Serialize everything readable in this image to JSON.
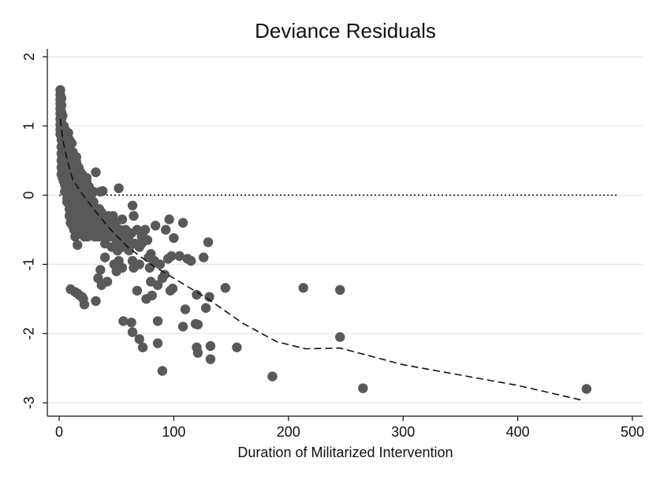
{
  "chart_data": {
    "type": "scatter",
    "title": "Deviance Residuals",
    "xlabel": "Duration of Militarized Intervention",
    "ylabel": "",
    "xlim": [
      0,
      500
    ],
    "ylim": [
      -3,
      2
    ],
    "xticks": [
      "0",
      "100",
      "200",
      "300",
      "400",
      "500"
    ],
    "xtick_values": [
      0,
      100,
      200,
      300,
      400,
      500
    ],
    "yticks": [
      "2",
      "1",
      "0",
      "-1",
      "-2",
      "-3"
    ],
    "ytick_values": [
      2,
      1,
      0,
      -1,
      -2,
      -3
    ],
    "grid": true,
    "legend": "none",
    "colors": {
      "points": "#595959",
      "fit_line": "#111111",
      "reference_line": "#111111",
      "grid": "#e6e6e6"
    },
    "points": [
      [
        1,
        1.52
      ],
      [
        1,
        1.45
      ],
      [
        1,
        1.38
      ],
      [
        1,
        1.32
      ],
      [
        1,
        1.25
      ],
      [
        1,
        1.18
      ],
      [
        1,
        1.1
      ],
      [
        1,
        1.02
      ],
      [
        1,
        0.95
      ],
      [
        1,
        0.88
      ],
      [
        2,
        1.4
      ],
      [
        2,
        1.3
      ],
      [
        2,
        1.2
      ],
      [
        2,
        1.1
      ],
      [
        2,
        1.0
      ],
      [
        2,
        0.9
      ],
      [
        2,
        0.8
      ],
      [
        2,
        0.7
      ],
      [
        2,
        0.6
      ],
      [
        2,
        0.5
      ],
      [
        2,
        0.4
      ],
      [
        2,
        0.3
      ],
      [
        3,
        1.15
      ],
      [
        3,
        0.95
      ],
      [
        3,
        0.8
      ],
      [
        3,
        0.65
      ],
      [
        3,
        0.55
      ],
      [
        3,
        0.45
      ],
      [
        3,
        0.35
      ],
      [
        3,
        0.25
      ],
      [
        4,
        1.0
      ],
      [
        4,
        0.85
      ],
      [
        4,
        0.7
      ],
      [
        4,
        0.6
      ],
      [
        4,
        0.5
      ],
      [
        4,
        0.4
      ],
      [
        4,
        0.3
      ],
      [
        4,
        0.2
      ],
      [
        5,
        0.9
      ],
      [
        5,
        0.75
      ],
      [
        5,
        0.6
      ],
      [
        5,
        0.45
      ],
      [
        5,
        0.3
      ],
      [
        5,
        0.15
      ],
      [
        5,
        0.05
      ],
      [
        6,
        0.85
      ],
      [
        6,
        0.65
      ],
      [
        6,
        0.5
      ],
      [
        6,
        0.35
      ],
      [
        6,
        0.2
      ],
      [
        6,
        0.05
      ],
      [
        7,
        0.75
      ],
      [
        7,
        0.55
      ],
      [
        7,
        0.4
      ],
      [
        7,
        0.2
      ],
      [
        7,
        -0.05
      ],
      [
        7,
        -0.1
      ],
      [
        8,
        0.9
      ],
      [
        8,
        0.7
      ],
      [
        8,
        0.5
      ],
      [
        8,
        0.3
      ],
      [
        8,
        0.15
      ],
      [
        8,
        -0.1
      ],
      [
        9,
        0.8
      ],
      [
        9,
        0.6
      ],
      [
        9,
        0.45
      ],
      [
        9,
        0.25
      ],
      [
        9,
        0.1
      ],
      [
        9,
        -0.2
      ],
      [
        9,
        -0.3
      ],
      [
        10,
        0.65
      ],
      [
        10,
        0.5
      ],
      [
        10,
        0.35
      ],
      [
        10,
        0.2
      ],
      [
        10,
        0.05
      ],
      [
        10,
        -0.1
      ],
      [
        10,
        -0.25
      ],
      [
        10,
        -0.4
      ],
      [
        11,
        0.55
      ],
      [
        11,
        0.4
      ],
      [
        11,
        0.25
      ],
      [
        11,
        0.1
      ],
      [
        11,
        -0.05
      ],
      [
        11,
        -0.35
      ],
      [
        12,
        0.45
      ],
      [
        12,
        0.3
      ],
      [
        12,
        0.15
      ],
      [
        12,
        0.0
      ],
      [
        12,
        -0.15
      ],
      [
        12,
        -0.3
      ],
      [
        12,
        -0.45
      ],
      [
        13,
        0.4
      ],
      [
        13,
        0.2
      ],
      [
        13,
        0.05
      ],
      [
        13,
        -0.2
      ],
      [
        13,
        -0.4
      ],
      [
        13,
        -0.5
      ],
      [
        14,
        0.3
      ],
      [
        14,
        0.15
      ],
      [
        14,
        -0.05
      ],
      [
        14,
        -0.25
      ],
      [
        14,
        -0.45
      ],
      [
        14,
        -0.6
      ],
      [
        15,
        0.55
      ],
      [
        15,
        0.35
      ],
      [
        15,
        0.1
      ],
      [
        15,
        -0.1
      ],
      [
        15,
        -0.3
      ],
      [
        15,
        -0.55
      ],
      [
        16,
        0.25
      ],
      [
        16,
        0.05
      ],
      [
        16,
        -0.15
      ],
      [
        16,
        -0.35
      ],
      [
        16,
        -0.72
      ],
      [
        17,
        0.4
      ],
      [
        17,
        0.2
      ],
      [
        17,
        0.0
      ],
      [
        17,
        -0.2
      ],
      [
        17,
        -0.4
      ],
      [
        18,
        0.3
      ],
      [
        18,
        0.1
      ],
      [
        18,
        -0.1
      ],
      [
        18,
        -0.3
      ],
      [
        18,
        -0.5
      ],
      [
        19,
        0.15
      ],
      [
        19,
        -0.05
      ],
      [
        19,
        -0.25
      ],
      [
        19,
        -0.45
      ],
      [
        20,
        0.25
      ],
      [
        20,
        0.05
      ],
      [
        20,
        -0.15
      ],
      [
        20,
        -0.35
      ],
      [
        20,
        -0.55
      ],
      [
        21,
        0.2
      ],
      [
        21,
        -0.05
      ],
      [
        21,
        -0.3
      ],
      [
        21,
        -0.5
      ],
      [
        22,
        0.1
      ],
      [
        22,
        -0.1
      ],
      [
        22,
        -0.35
      ],
      [
        22,
        -0.6
      ],
      [
        23,
        0.15
      ],
      [
        23,
        -0.05
      ],
      [
        23,
        -0.2
      ],
      [
        23,
        -0.45
      ],
      [
        24,
        0.25
      ],
      [
        24,
        0.0
      ],
      [
        24,
        -0.3
      ],
      [
        24,
        -0.55
      ],
      [
        25,
        0.1
      ],
      [
        25,
        -0.15
      ],
      [
        25,
        -0.4
      ],
      [
        25,
        -0.6
      ],
      [
        26,
        0.05
      ],
      [
        26,
        -0.2
      ],
      [
        26,
        -0.35
      ],
      [
        27,
        -0.1
      ],
      [
        27,
        -0.25
      ],
      [
        27,
        -0.5
      ],
      [
        28,
        0.0
      ],
      [
        28,
        -0.3
      ],
      [
        28,
        -0.45
      ],
      [
        29,
        -0.15
      ],
      [
        29,
        -0.35
      ],
      [
        29,
        -0.55
      ],
      [
        30,
        0.05
      ],
      [
        30,
        -0.1
      ],
      [
        30,
        -0.4
      ],
      [
        31,
        -0.2
      ],
      [
        31,
        -0.6
      ],
      [
        32,
        0.33
      ],
      [
        32,
        -0.3
      ],
      [
        32,
        -0.5
      ],
      [
        33,
        -0.45
      ],
      [
        34,
        -0.35
      ],
      [
        34,
        -0.6
      ],
      [
        35,
        -0.2
      ],
      [
        35,
        -0.55
      ],
      [
        36,
        0.05
      ],
      [
        36,
        -0.4
      ],
      [
        37,
        -0.25
      ],
      [
        38,
        -0.6
      ],
      [
        38,
        0.06
      ],
      [
        39,
        -0.45
      ],
      [
        40,
        -0.3
      ],
      [
        40,
        -0.7
      ],
      [
        41,
        -0.5
      ],
      [
        42,
        -0.4
      ],
      [
        43,
        -0.3
      ],
      [
        44,
        -0.6
      ],
      [
        45,
        -0.5
      ],
      [
        46,
        -0.75
      ],
      [
        47,
        -0.3
      ],
      [
        48,
        -0.55
      ],
      [
        49,
        -0.4
      ],
      [
        50,
        -0.65
      ],
      [
        51,
        -0.8
      ],
      [
        52,
        0.1
      ],
      [
        53,
        -0.5
      ],
      [
        54,
        -0.7
      ],
      [
        55,
        -0.35
      ],
      [
        56,
        -0.6
      ],
      [
        57,
        -0.75
      ],
      [
        58,
        -0.5
      ],
      [
        60,
        -0.65
      ],
      [
        61,
        -0.8
      ],
      [
        63,
        -0.55
      ],
      [
        64,
        -0.15
      ],
      [
        65,
        -0.3
      ],
      [
        66,
        -0.7
      ],
      [
        68,
        -0.5
      ],
      [
        70,
        -0.75
      ],
      [
        72,
        -0.6
      ],
      [
        75,
        -0.5
      ],
      [
        77,
        -0.65
      ],
      [
        80,
        -0.85
      ],
      [
        10,
        -1.36
      ],
      [
        14,
        -1.4
      ],
      [
        16,
        -1.42
      ],
      [
        18,
        -1.45
      ],
      [
        20,
        -1.47
      ],
      [
        21,
        -1.5
      ],
      [
        22,
        -1.58
      ],
      [
        32,
        -1.53
      ],
      [
        34,
        -1.2
      ],
      [
        36,
        -1.08
      ],
      [
        37,
        -1.3
      ],
      [
        40,
        -0.9
      ],
      [
        42,
        -1.25
      ],
      [
        48,
        -1.0
      ],
      [
        50,
        -1.1
      ],
      [
        52,
        -0.95
      ],
      [
        55,
        -1.05
      ],
      [
        56,
        -0.62
      ],
      [
        58,
        -0.74
      ],
      [
        62,
        -0.68
      ],
      [
        64,
        -0.95
      ],
      [
        65,
        -1.05
      ],
      [
        66,
        -1.0
      ],
      [
        68,
        -1.38
      ],
      [
        70,
        -1.0
      ],
      [
        72,
        -0.7
      ],
      [
        74,
        -0.62
      ],
      [
        76,
        -1.5
      ],
      [
        78,
        -0.9
      ],
      [
        79,
        -1.05
      ],
      [
        80,
        -1.25
      ],
      [
        81,
        -1.45
      ],
      [
        83,
        -0.95
      ],
      [
        84,
        -0.44
      ],
      [
        86,
        -1.3
      ],
      [
        88,
        -1.0
      ],
      [
        90,
        -1.2
      ],
      [
        92,
        -1.15
      ],
      [
        93,
        -0.5
      ],
      [
        95,
        -0.92
      ],
      [
        96,
        -0.35
      ],
      [
        97,
        -1.38
      ],
      [
        98,
        -0.88
      ],
      [
        99,
        -1.35
      ],
      [
        100,
        -0.62
      ],
      [
        105,
        -0.88
      ],
      [
        108,
        -0.4
      ],
      [
        110,
        -1.65
      ],
      [
        112,
        -0.92
      ],
      [
        115,
        -0.95
      ],
      [
        119,
        -1.86
      ],
      [
        120,
        -1.44
      ],
      [
        121,
        -1.87
      ],
      [
        126,
        -0.9
      ],
      [
        128,
        -1.63
      ],
      [
        130,
        -0.68
      ],
      [
        131,
        -1.47
      ],
      [
        145,
        -1.34
      ],
      [
        56,
        -1.82
      ],
      [
        63,
        -1.84
      ],
      [
        64,
        -1.98
      ],
      [
        70,
        -2.08
      ],
      [
        73,
        -2.2
      ],
      [
        86,
        -1.82
      ],
      [
        86,
        -2.14
      ],
      [
        90,
        -2.54
      ],
      [
        108,
        -1.9
      ],
      [
        120,
        -2.2
      ],
      [
        121,
        -2.28
      ],
      [
        132,
        -2.18
      ],
      [
        132,
        -2.37
      ],
      [
        155,
        -2.2
      ],
      [
        186,
        -2.62
      ],
      [
        213,
        -1.34
      ],
      [
        245,
        -1.37
      ],
      [
        245,
        -2.05
      ],
      [
        265,
        -2.79
      ],
      [
        460,
        -2.8
      ],
      [
        5,
        0.95
      ],
      [
        6,
        0.8
      ],
      [
        7,
        0.9
      ],
      [
        9,
        0.55
      ],
      [
        11,
        0.75
      ],
      [
        12,
        0.62
      ],
      [
        14,
        0.5
      ],
      [
        15,
        0.48
      ],
      [
        16,
        0.42
      ],
      [
        17,
        0.38
      ],
      [
        18,
        0.35
      ],
      [
        19,
        0.32
      ],
      [
        20,
        0.3
      ],
      [
        22,
        0.2
      ],
      [
        24,
        0.18
      ],
      [
        26,
        0.12
      ]
    ],
    "fit_line": [
      [
        1,
        1.1
      ],
      [
        3,
        0.82
      ],
      [
        5,
        0.65
      ],
      [
        8,
        0.45
      ],
      [
        12,
        0.22
      ],
      [
        20,
        0.02
      ],
      [
        30,
        -0.2
      ],
      [
        45,
        -0.5
      ],
      [
        60,
        -0.75
      ],
      [
        80,
        -1.0
      ],
      [
        100,
        -1.2
      ],
      [
        130,
        -1.5
      ],
      [
        160,
        -1.85
      ],
      [
        190,
        -2.12
      ],
      [
        215,
        -2.22
      ],
      [
        245,
        -2.21
      ],
      [
        300,
        -2.45
      ],
      [
        400,
        -2.75
      ],
      [
        458,
        -2.97
      ]
    ],
    "reference_line": {
      "y": 0,
      "x_start": 0,
      "x_end": 488
    }
  }
}
